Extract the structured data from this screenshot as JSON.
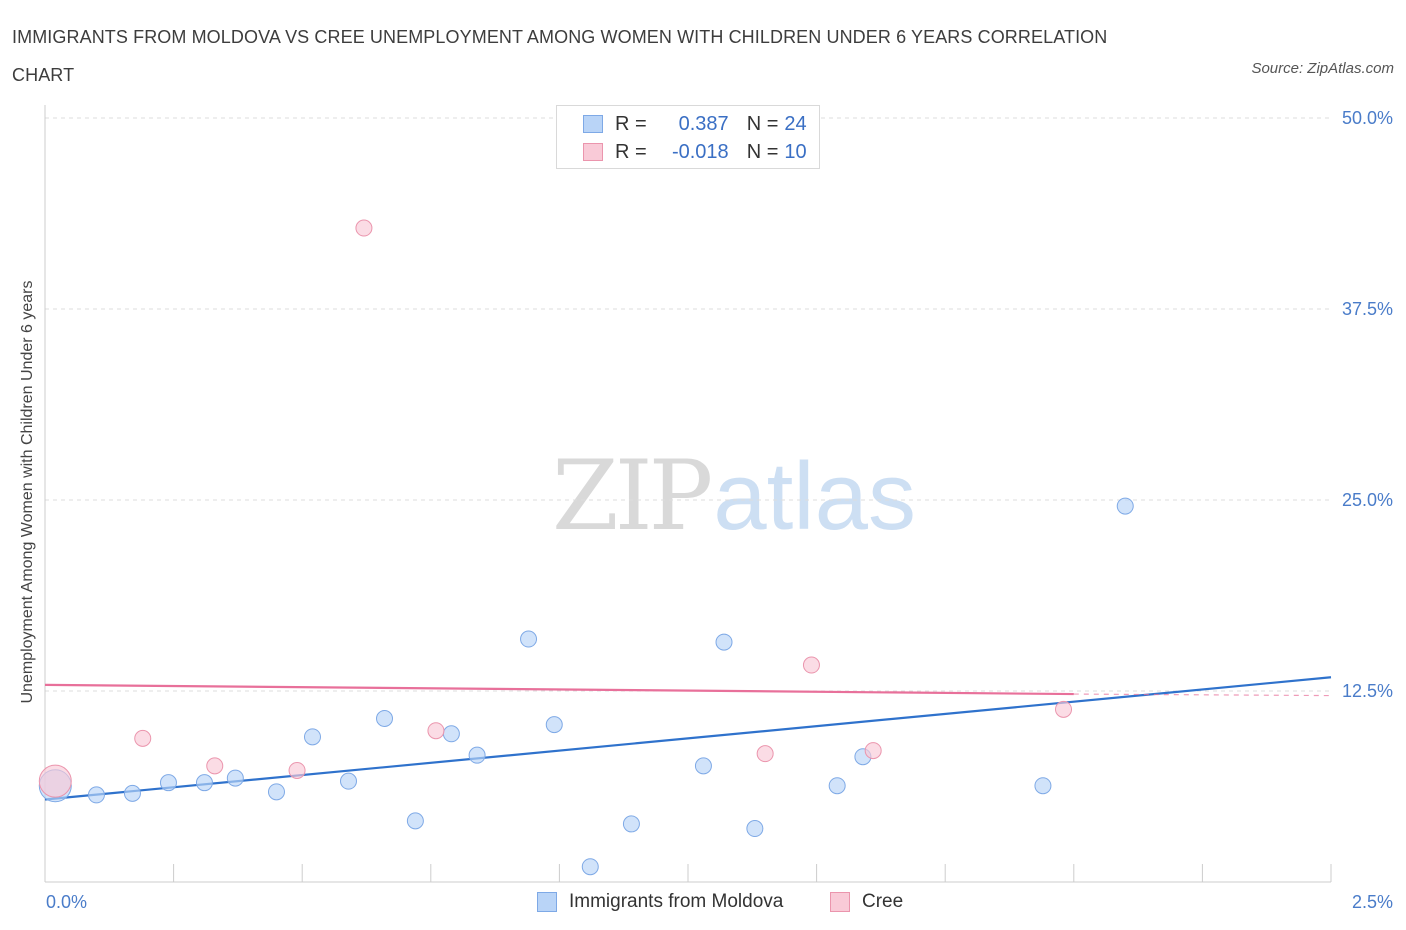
{
  "header": {
    "title": "IMMIGRANTS FROM MOLDOVA VS CREE UNEMPLOYMENT AMONG WOMEN WITH CHILDREN UNDER 6 YEARS CORRELATION CHART",
    "source": "Source: ZipAtlas.com"
  },
  "watermark": {
    "part1": "ZIP",
    "part2": "atlas"
  },
  "legend": {
    "rows": [
      {
        "r_label": "R =",
        "r_value": "0.387",
        "n_label": "N =",
        "n_value": "24",
        "color": "#b9d4f7",
        "border": "#7ea9e6"
      },
      {
        "r_label": "R =",
        "r_value": "-0.018",
        "n_label": "N =",
        "n_value": "10",
        "color": "#f9cad7",
        "border": "#eb95ad"
      }
    ]
  },
  "bottom_legend": {
    "items": [
      {
        "label": "Immigrants from Moldova",
        "color": "#b9d4f7",
        "border": "#7ea9e6"
      },
      {
        "label": "Cree",
        "color": "#f9cad7",
        "border": "#eb95ad"
      }
    ]
  },
  "chart_data": {
    "type": "scatter",
    "ylabel": "Unemployment Among Women with Children Under 6 years",
    "xlabel": "",
    "xlim": [
      0,
      2.5
    ],
    "ylim": [
      0,
      50
    ],
    "x_tick_labels": {
      "min": "0.0%",
      "max": "2.5%"
    },
    "y_ticks": [
      {
        "value": 12.5,
        "label": "12.5%"
      },
      {
        "value": 25.0,
        "label": "25.0%"
      },
      {
        "value": 37.5,
        "label": "37.5%"
      },
      {
        "value": 50.0,
        "label": "50.0%"
      }
    ],
    "grid": "horizontal dashed",
    "series": [
      {
        "name": "Immigrants from Moldova",
        "color": "#b9d4f7",
        "stroke": "#7ea9e6",
        "line_color": "#2f72cc",
        "points": [
          {
            "x": 0.02,
            "y": 6.3,
            "size": "large"
          },
          {
            "x": 0.1,
            "y": 5.7
          },
          {
            "x": 0.17,
            "y": 5.8
          },
          {
            "x": 0.24,
            "y": 6.5
          },
          {
            "x": 0.31,
            "y": 6.5
          },
          {
            "x": 0.37,
            "y": 6.8
          },
          {
            "x": 0.45,
            "y": 5.9
          },
          {
            "x": 0.52,
            "y": 9.5
          },
          {
            "x": 0.59,
            "y": 6.6
          },
          {
            "x": 0.66,
            "y": 10.7
          },
          {
            "x": 0.72,
            "y": 4.0
          },
          {
            "x": 0.79,
            "y": 9.7
          },
          {
            "x": 0.84,
            "y": 8.3
          },
          {
            "x": 0.94,
            "y": 15.9
          },
          {
            "x": 0.99,
            "y": 10.3
          },
          {
            "x": 1.06,
            "y": 1.0
          },
          {
            "x": 1.14,
            "y": 3.8
          },
          {
            "x": 1.28,
            "y": 7.6
          },
          {
            "x": 1.32,
            "y": 15.7
          },
          {
            "x": 1.38,
            "y": 3.5
          },
          {
            "x": 1.54,
            "y": 6.3
          },
          {
            "x": 1.59,
            "y": 8.2
          },
          {
            "x": 1.94,
            "y": 6.3
          },
          {
            "x": 2.1,
            "y": 24.6
          }
        ],
        "trend": {
          "x0": 0.0,
          "y0": 5.4,
          "x1": 2.5,
          "y1": 13.4
        }
      },
      {
        "name": "Cree",
        "color": "#f9cad7",
        "stroke": "#eb95ad",
        "line_color": "#e8709a",
        "points": [
          {
            "x": 0.02,
            "y": 6.6,
            "size": "large"
          },
          {
            "x": 0.19,
            "y": 9.4
          },
          {
            "x": 0.33,
            "y": 7.6
          },
          {
            "x": 0.49,
            "y": 7.3
          },
          {
            "x": 0.62,
            "y": 42.8
          },
          {
            "x": 0.76,
            "y": 9.9
          },
          {
            "x": 1.4,
            "y": 8.4
          },
          {
            "x": 1.49,
            "y": 14.2
          },
          {
            "x": 1.61,
            "y": 8.6
          },
          {
            "x": 1.98,
            "y": 11.3
          }
        ],
        "trend": {
          "x0": 0.0,
          "y0": 12.9,
          "x1": 2.0,
          "y1": 12.3,
          "dash_to": 2.5,
          "dash_y": 12.2
        }
      }
    ]
  }
}
